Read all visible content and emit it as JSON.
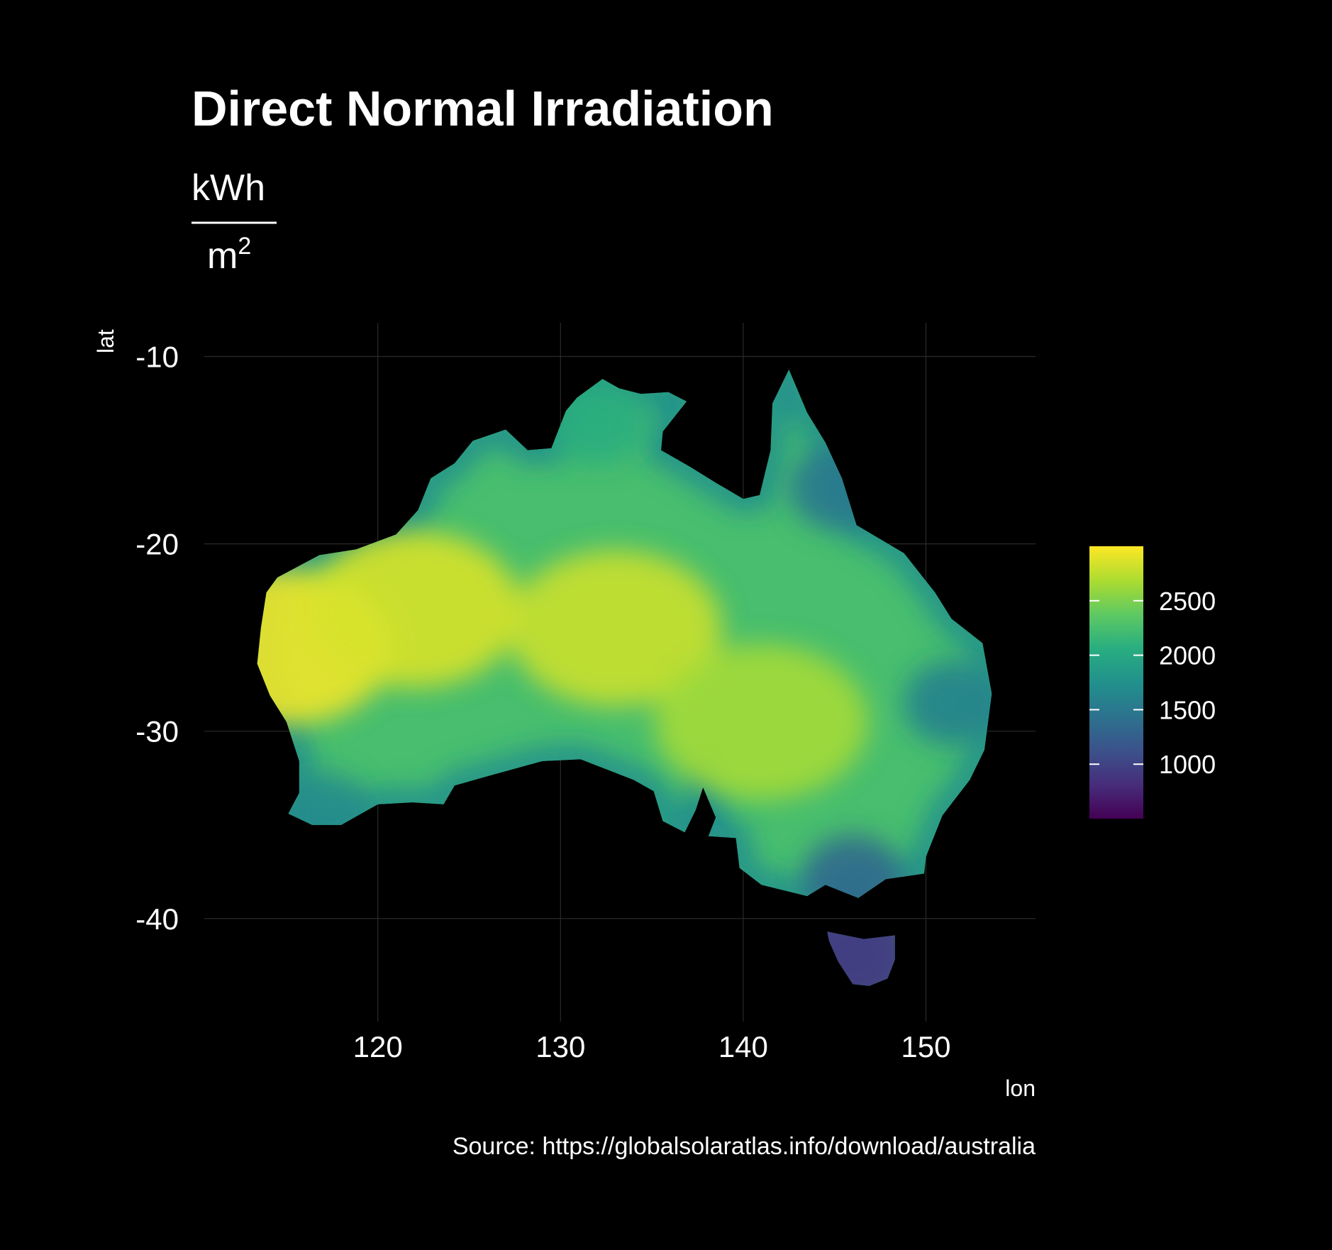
{
  "chart_data": {
    "type": "heatmap",
    "title": "Direct Normal Irradiation",
    "subtitle_unit": {
      "numerator": "kWh",
      "denominator": "m",
      "exponent": "2"
    },
    "xlabel": "lon",
    "ylabel": "lat",
    "caption": "Source: https://globalsolaratlas.info/download/australia",
    "xlim": [
      110.5,
      156
    ],
    "ylim": [
      -45.5,
      -8.2
    ],
    "x_ticks": [
      120,
      130,
      140,
      150
    ],
    "x_tick_labels": [
      "120",
      "130",
      "140",
      "150"
    ],
    "y_ticks": [
      -10,
      -20,
      -30,
      -40
    ],
    "y_tick_labels": [
      "-10",
      "-20",
      "-30",
      "-40"
    ],
    "grid": true,
    "colorbar": {
      "palette": "viridis",
      "range": [
        500,
        3000
      ],
      "ticks": [
        2500,
        2000,
        1500,
        1000
      ],
      "tick_labels": [
        "2500",
        "2000",
        "1500",
        "1000"
      ],
      "colors": [
        "#440154",
        "#472d7b",
        "#3b528b",
        "#2c728e",
        "#21918c",
        "#28ae80",
        "#5ec962",
        "#addc30",
        "#fde725"
      ],
      "placement": "right"
    },
    "mainland_outline": [
      [
        142.5,
        -10.7
      ],
      [
        143.5,
        -13.0
      ],
      [
        144.5,
        -14.6
      ],
      [
        145.4,
        -16.5
      ],
      [
        146.2,
        -19.0
      ],
      [
        148.8,
        -20.5
      ],
      [
        150.5,
        -22.6
      ],
      [
        151.4,
        -24.0
      ],
      [
        153.1,
        -25.3
      ],
      [
        153.6,
        -28.0
      ],
      [
        153.2,
        -31.0
      ],
      [
        152.4,
        -32.6
      ],
      [
        150.9,
        -34.5
      ],
      [
        150.0,
        -36.7
      ],
      [
        149.9,
        -37.6
      ],
      [
        147.8,
        -37.9
      ],
      [
        146.3,
        -38.9
      ],
      [
        144.5,
        -38.2
      ],
      [
        143.5,
        -38.8
      ],
      [
        141.0,
        -38.2
      ],
      [
        139.8,
        -37.3
      ],
      [
        139.6,
        -35.7
      ],
      [
        138.1,
        -35.6
      ],
      [
        138.5,
        -34.6
      ],
      [
        137.8,
        -33.0
      ],
      [
        137.4,
        -34.2
      ],
      [
        136.8,
        -35.4
      ],
      [
        135.6,
        -34.8
      ],
      [
        135.1,
        -33.2
      ],
      [
        134.0,
        -32.6
      ],
      [
        131.1,
        -31.5
      ],
      [
        129.0,
        -31.6
      ],
      [
        126.0,
        -32.4
      ],
      [
        124.2,
        -32.9
      ],
      [
        123.6,
        -33.9
      ],
      [
        121.9,
        -33.8
      ],
      [
        120.0,
        -33.9
      ],
      [
        118.0,
        -35.0
      ],
      [
        116.4,
        -35.0
      ],
      [
        115.1,
        -34.4
      ],
      [
        115.7,
        -33.3
      ],
      [
        115.7,
        -31.6
      ],
      [
        115.0,
        -29.5
      ],
      [
        114.1,
        -28.1
      ],
      [
        113.4,
        -26.4
      ],
      [
        113.6,
        -24.5
      ],
      [
        113.9,
        -22.6
      ],
      [
        114.5,
        -21.8
      ],
      [
        116.8,
        -20.6
      ],
      [
        118.8,
        -20.3
      ],
      [
        121.0,
        -19.5
      ],
      [
        122.2,
        -18.2
      ],
      [
        122.9,
        -16.5
      ],
      [
        124.2,
        -15.7
      ],
      [
        125.2,
        -14.5
      ],
      [
        127.0,
        -13.9
      ],
      [
        128.2,
        -15.0
      ],
      [
        129.5,
        -14.9
      ],
      [
        130.3,
        -12.9
      ],
      [
        130.9,
        -12.2
      ],
      [
        132.3,
        -11.2
      ],
      [
        133.2,
        -11.7
      ],
      [
        134.4,
        -12.0
      ],
      [
        135.9,
        -11.9
      ],
      [
        136.9,
        -12.4
      ],
      [
        135.6,
        -14.0
      ],
      [
        135.5,
        -15.0
      ],
      [
        137.1,
        -15.9
      ],
      [
        138.6,
        -16.8
      ],
      [
        140.0,
        -17.6
      ],
      [
        140.9,
        -17.4
      ],
      [
        141.5,
        -15.0
      ],
      [
        141.6,
        -12.5
      ],
      [
        142.5,
        -10.7
      ]
    ],
    "tasmania_outline": [
      [
        144.6,
        -40.7
      ],
      [
        146.6,
        -41.1
      ],
      [
        148.3,
        -40.9
      ],
      [
        148.3,
        -42.2
      ],
      [
        147.9,
        -43.2
      ],
      [
        146.9,
        -43.6
      ],
      [
        146.0,
        -43.5
      ],
      [
        145.2,
        -42.3
      ],
      [
        144.7,
        -41.2
      ],
      [
        144.6,
        -40.7
      ]
    ],
    "irradiation_centers": [
      {
        "lon": 115.0,
        "lat": -25.5,
        "value": 2950
      },
      {
        "lon": 122.0,
        "lat": -23.5,
        "value": 2850
      },
      {
        "lon": 133.0,
        "lat": -24.5,
        "value": 2800
      },
      {
        "lon": 141.0,
        "lat": -29.5,
        "value": 2650
      },
      {
        "lon": 132.0,
        "lat": -13.5,
        "value": 2050
      },
      {
        "lon": 145.2,
        "lat": -17.0,
        "value": 1500
      },
      {
        "lon": 151.5,
        "lat": -28.5,
        "value": 1600
      },
      {
        "lon": 146.0,
        "lat": -37.8,
        "value": 1350
      },
      {
        "lon": 117.0,
        "lat": -34.5,
        "value": 1700
      },
      {
        "lon": 146.0,
        "lat": -42.0,
        "value": 900
      }
    ]
  }
}
